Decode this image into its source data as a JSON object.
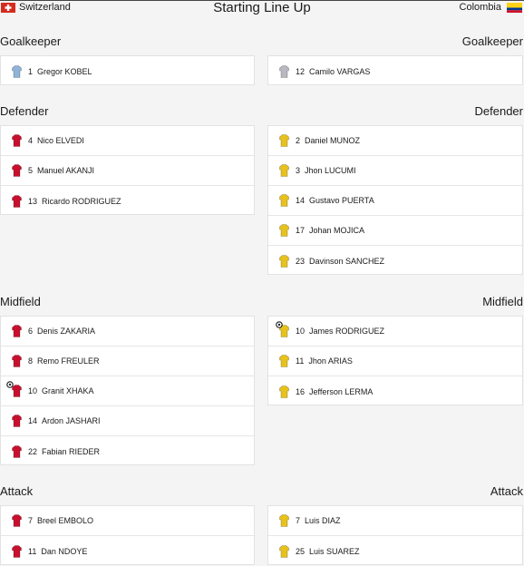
{
  "header": {
    "home_team": "Switzerland",
    "title": "Starting Line Up",
    "away_team": "Colombia"
  },
  "sections": [
    {
      "title": "Goalkeeper",
      "home_color": "#8fb3d9",
      "away_color": "#b8b8c0",
      "home": [
        {
          "number": 1,
          "name": "Gregor KOBEL"
        }
      ],
      "away": [
        {
          "number": 12,
          "name": "Camilo VARGAS"
        }
      ]
    },
    {
      "title": "Defender",
      "home_color": "#c8102e",
      "away_color": "#e8c21c",
      "home": [
        {
          "number": 4,
          "name": "Nico ELVEDI"
        },
        {
          "number": 5,
          "name": "Manuel AKANJI"
        },
        {
          "number": 13,
          "name": "Ricardo RODRIGUEZ"
        }
      ],
      "away": [
        {
          "number": 2,
          "name": "Daniel MUNOZ"
        },
        {
          "number": 3,
          "name": "Jhon LUCUMI"
        },
        {
          "number": 14,
          "name": "Gustavo PUERTA"
        },
        {
          "number": 17,
          "name": "Johan MOJICA"
        },
        {
          "number": 23,
          "name": "Davinson SANCHEZ"
        }
      ]
    },
    {
      "title": "Midfield",
      "home_color": "#c8102e",
      "away_color": "#e8c21c",
      "home": [
        {
          "number": 6,
          "name": "Denis ZAKARIA"
        },
        {
          "number": 8,
          "name": "Remo FREULER"
        },
        {
          "number": 10,
          "name": "Granit XHAKA"
        },
        {
          "number": 14,
          "name": "Ardon JASHARI"
        },
        {
          "number": 22,
          "name": "Fabian RIEDER"
        }
      ],
      "away": [
        {
          "number": 10,
          "name": "James RODRIGUEZ"
        },
        {
          "number": 11,
          "name": "Jhon ARIAS"
        },
        {
          "number": 16,
          "name": "Jefferson LERMA"
        }
      ]
    },
    {
      "title": "Attack",
      "home_color": "#c8102e",
      "away_color": "#e8c21c",
      "home": [
        {
          "number": 7,
          "name": "Breel EMBOLO"
        },
        {
          "number": 11,
          "name": "Dan NDOYE"
        }
      ],
      "away": [
        {
          "number": 7,
          "name": "Luis DIAZ"
        },
        {
          "number": 25,
          "name": "Luis SUAREZ"
        }
      ]
    }
  ]
}
